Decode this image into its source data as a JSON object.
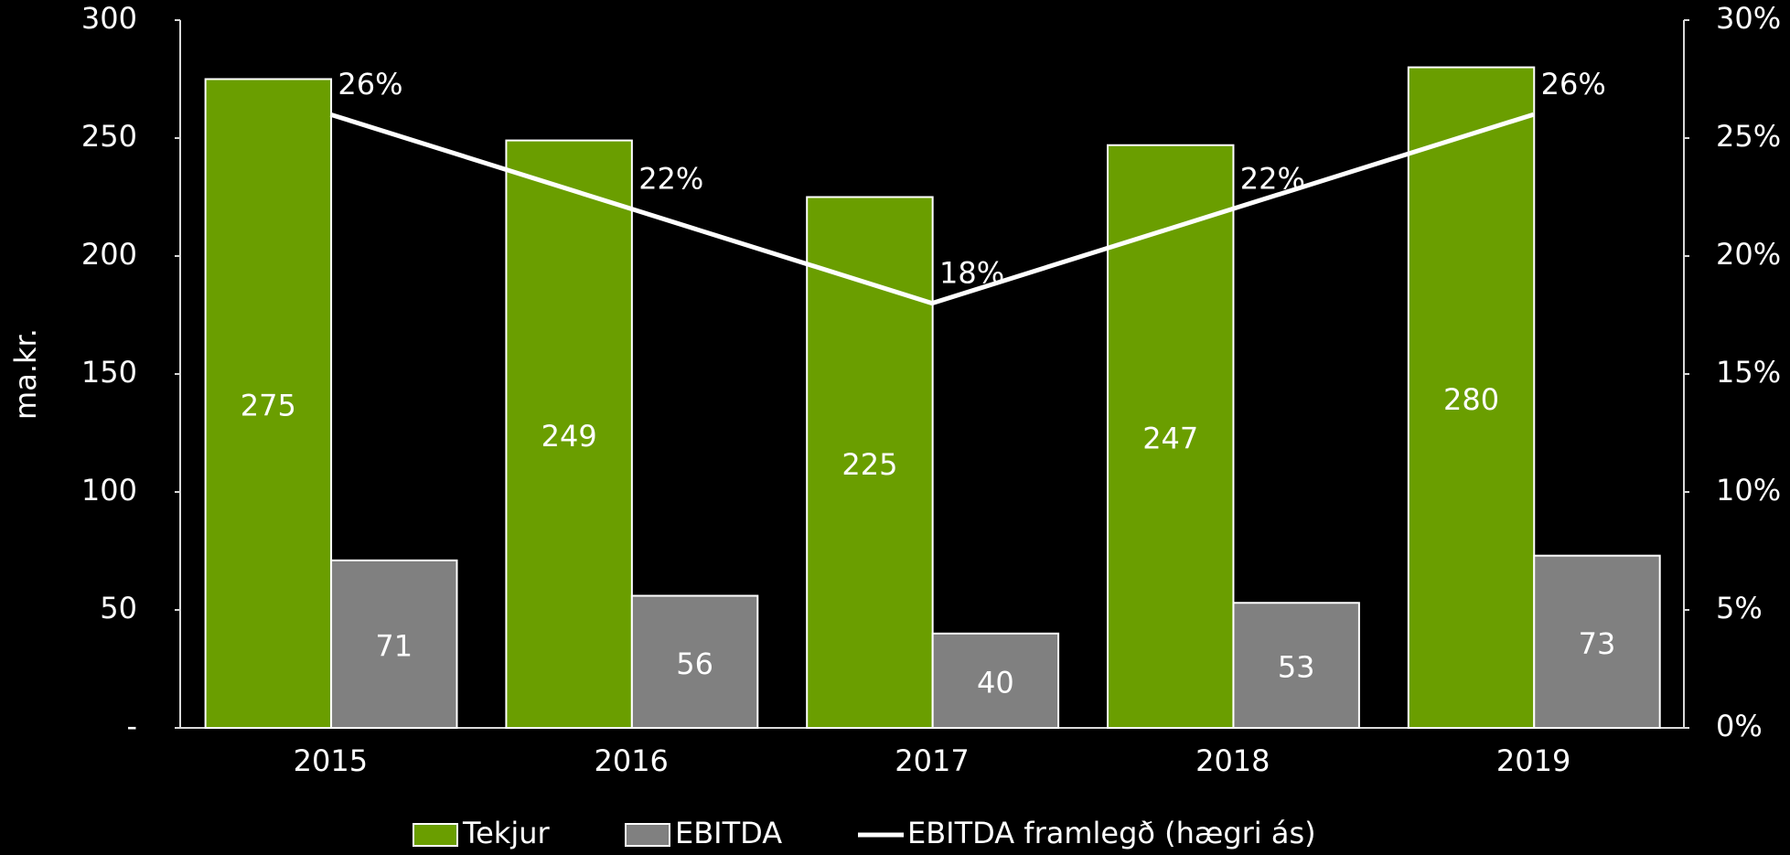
{
  "chart_data": {
    "type": "bar",
    "y_label": "ma.kr.",
    "categories": [
      "2015",
      "2016",
      "2017",
      "2018",
      "2019"
    ],
    "series": [
      {
        "name": "Tekjur",
        "color": "#6a9e00",
        "values": [
          275,
          249,
          225,
          247,
          280
        ]
      },
      {
        "name": "EBITDA",
        "color": "#808080",
        "values": [
          71,
          56,
          40,
          53,
          73
        ]
      },
      {
        "name": "EBITDA framlegð (hægri ás)",
        "type": "line",
        "axis": "y2",
        "color": "#ffffff",
        "values": [
          26,
          22,
          18,
          22,
          26
        ],
        "value_labels": [
          "26%",
          "22%",
          "18%",
          "22%",
          "26%"
        ]
      }
    ],
    "ylim": [
      0,
      300
    ],
    "yticks": [
      {
        "value": 0,
        "label": "-"
      },
      50,
      100,
      150,
      200,
      250,
      300
    ],
    "y2lim": [
      0,
      30
    ],
    "y2ticks": [
      {
        "value": 0,
        "label": "0%"
      },
      {
        "value": 5,
        "label": "5%"
      },
      {
        "value": 10,
        "label": "10%"
      },
      {
        "value": 15,
        "label": "15%"
      },
      {
        "value": 20,
        "label": "20%"
      },
      {
        "value": 25,
        "label": "25%"
      },
      {
        "value": 30,
        "label": "30%"
      }
    ],
    "legend": "bottom"
  }
}
